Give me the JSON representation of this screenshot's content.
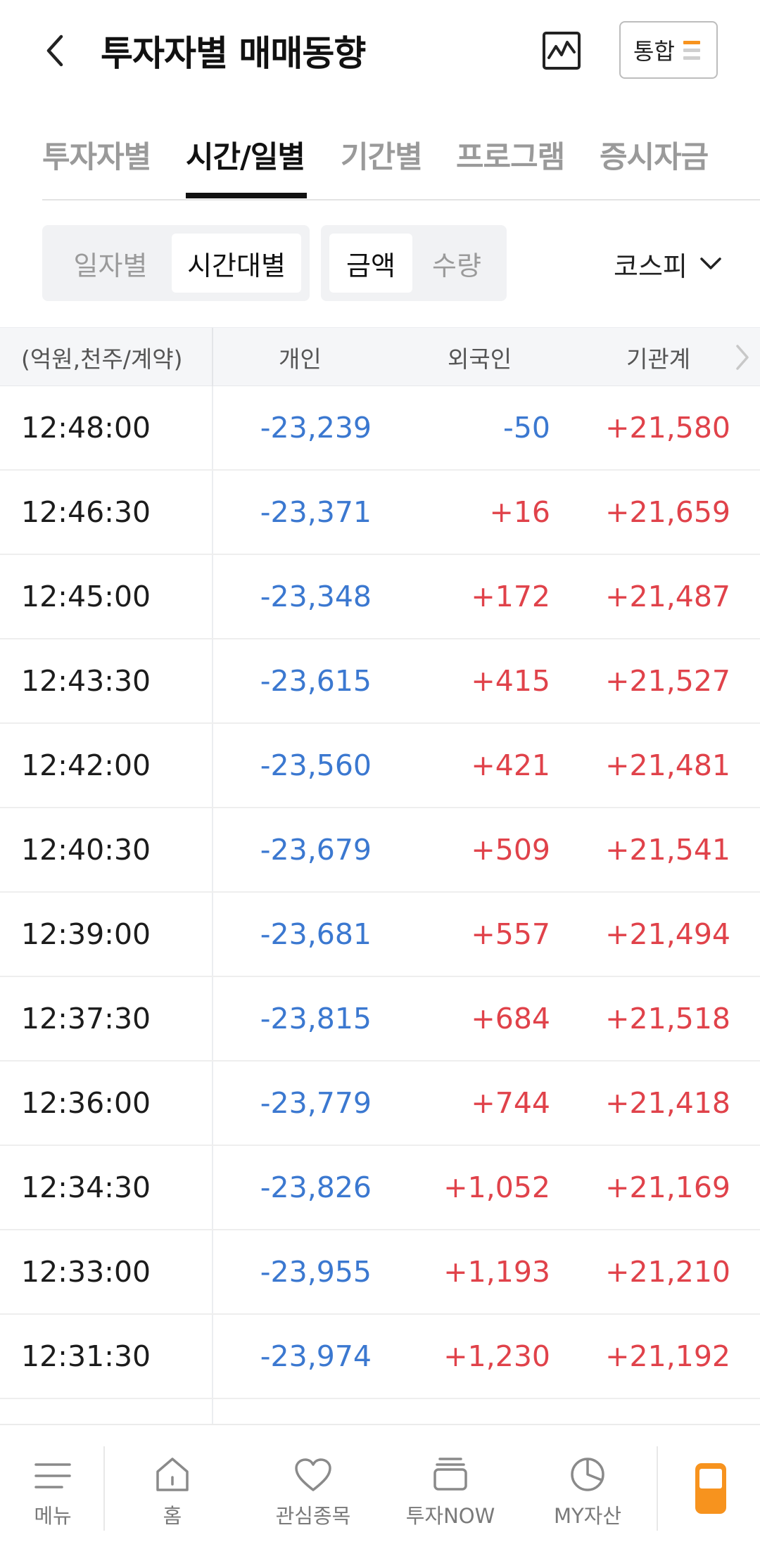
{
  "header": {
    "title": "투자자별 매매동향",
    "back_icon": "chevron-left-icon",
    "chart_icon": "line-chart-icon",
    "integrated_label": "통합",
    "integrated_icon": "menu-bars-icon"
  },
  "tabs": [
    {
      "label": "투자자별",
      "active": false
    },
    {
      "label": "시간/일별",
      "active": true
    },
    {
      "label": "기간별",
      "active": false
    },
    {
      "label": "프로그램",
      "active": false
    },
    {
      "label": "증시자금",
      "active": false
    }
  ],
  "filters": {
    "period": [
      {
        "label": "일자별",
        "active": false
      },
      {
        "label": "시간대별",
        "active": true
      }
    ],
    "unit": [
      {
        "label": "금액",
        "active": true
      },
      {
        "label": "수량",
        "active": false
      }
    ],
    "market": "코스피"
  },
  "table": {
    "headers": [
      "(억원,천주/계약)",
      "개인",
      "외국인",
      "기관계"
    ],
    "rows": [
      {
        "time": "12:48:00",
        "individual": "-23,239",
        "foreign": "-50",
        "institution": "+21,580"
      },
      {
        "time": "12:46:30",
        "individual": "-23,371",
        "foreign": "+16",
        "institution": "+21,659"
      },
      {
        "time": "12:45:00",
        "individual": "-23,348",
        "foreign": "+172",
        "institution": "+21,487"
      },
      {
        "time": "12:43:30",
        "individual": "-23,615",
        "foreign": "+415",
        "institution": "+21,527"
      },
      {
        "time": "12:42:00",
        "individual": "-23,560",
        "foreign": "+421",
        "institution": "+21,481"
      },
      {
        "time": "12:40:30",
        "individual": "-23,679",
        "foreign": "+509",
        "institution": "+21,541"
      },
      {
        "time": "12:39:00",
        "individual": "-23,681",
        "foreign": "+557",
        "institution": "+21,494"
      },
      {
        "time": "12:37:30",
        "individual": "-23,815",
        "foreign": "+684",
        "institution": "+21,518"
      },
      {
        "time": "12:36:00",
        "individual": "-23,779",
        "foreign": "+744",
        "institution": "+21,418"
      },
      {
        "time": "12:34:30",
        "individual": "-23,826",
        "foreign": "+1,052",
        "institution": "+21,169"
      },
      {
        "time": "12:33:00",
        "individual": "-23,955",
        "foreign": "+1,193",
        "institution": "+21,210"
      },
      {
        "time": "12:31:30",
        "individual": "-23,974",
        "foreign": "+1,230",
        "institution": "+21,192"
      }
    ]
  },
  "bottom_nav": [
    {
      "label": "메뉴",
      "icon": "hamburger-menu-icon"
    },
    {
      "label": "홈",
      "icon": "home-icon"
    },
    {
      "label": "관심종목",
      "icon": "heart-icon"
    },
    {
      "label": "투자NOW",
      "icon": "tv-stack-icon"
    },
    {
      "label": "MY자산",
      "icon": "pie-chart-icon"
    }
  ],
  "colors": {
    "negative": "#3b78d0",
    "positive": "#e0424a",
    "accent": "#f7931e"
  }
}
